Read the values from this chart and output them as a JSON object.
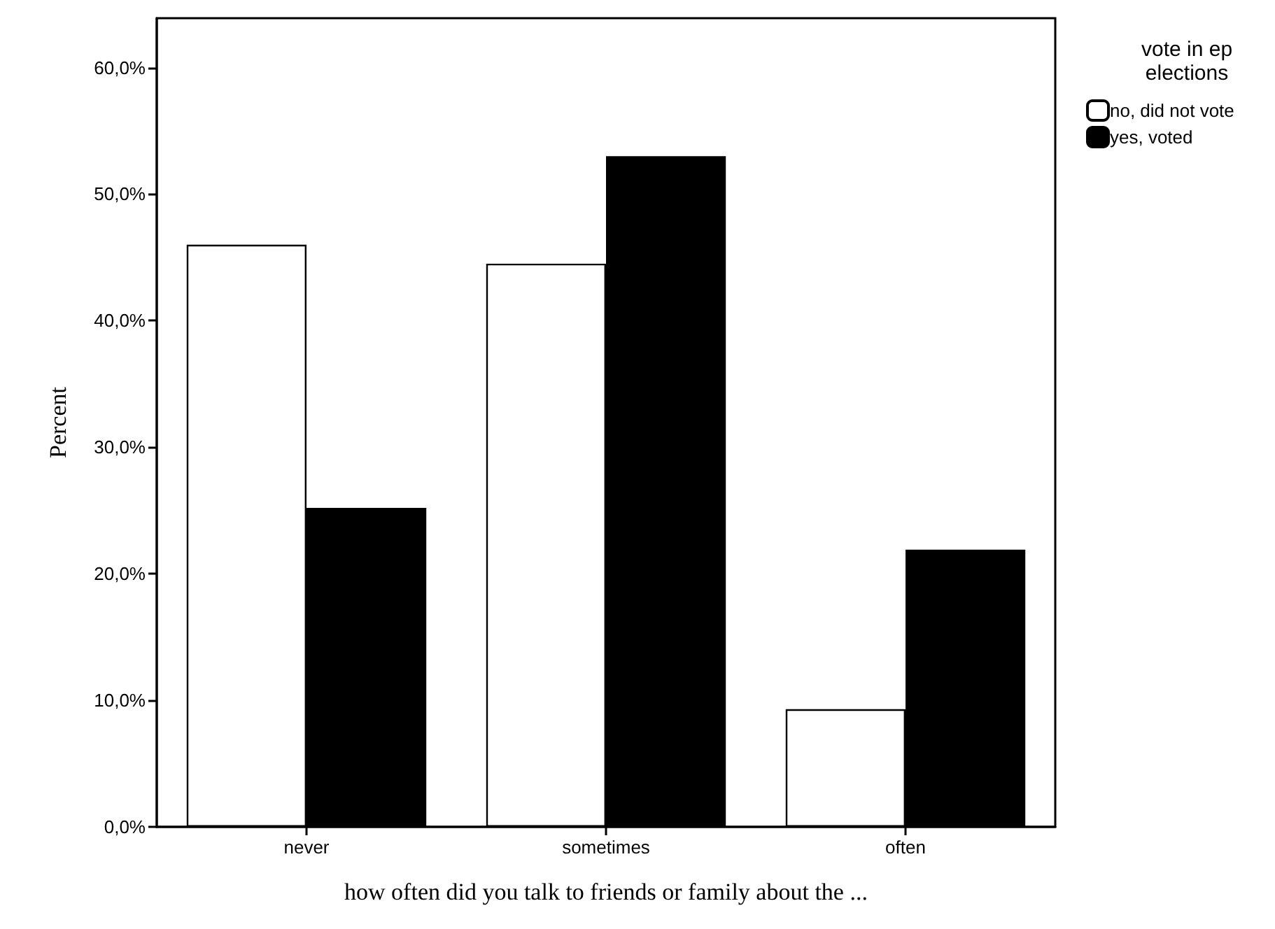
{
  "chart_data": {
    "type": "bar",
    "xlabel": "how often did you talk to friends or family about the ...",
    "ylabel": "Percent",
    "legend_title": "vote in ep\nelections",
    "categories": [
      "never",
      "sometimes",
      "often"
    ],
    "series": [
      {
        "name": "no, did not vote",
        "color": "#ffffff",
        "values": [
          46.0,
          44.5,
          9.3
        ]
      },
      {
        "name": "yes, voted",
        "color": "#000000",
        "values": [
          25.2,
          53.0,
          21.9
        ]
      }
    ],
    "ylim": [
      0,
      63.9
    ],
    "yticks": [
      {
        "value": 0,
        "label": "0,0%"
      },
      {
        "value": 10,
        "label": "10,0%"
      },
      {
        "value": 20,
        "label": "20,0%"
      },
      {
        "value": 30,
        "label": "30,0%"
      },
      {
        "value": 40,
        "label": "40,0%"
      },
      {
        "value": 50,
        "label": "50,0%"
      },
      {
        "value": 60,
        "label": "60,0%"
      }
    ],
    "grid": false,
    "legend": "top right"
  }
}
